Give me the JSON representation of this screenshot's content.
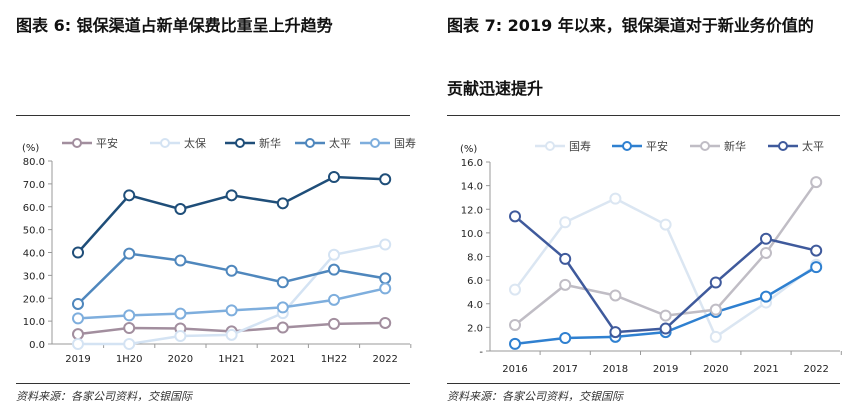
{
  "left": {
    "title": "图表 6:  银保渠道占新单保费比重呈上升趋势",
    "source": "资料来源：各家公司资料，交银国际"
  },
  "right": {
    "title_line1": "图表 7: 2019 年以来，银保渠道对于新业务价值的",
    "title_line2": "贡献迅速提升",
    "source": "资料来源：各家公司资料，交银国际"
  },
  "chart_data": [
    {
      "type": "line",
      "ylabel": "(%)",
      "ylim": [
        0,
        80
      ],
      "yticks": [
        "0.0",
        "10.0",
        "20.0",
        "30.0",
        "40.0",
        "50.0",
        "60.0",
        "70.0",
        "80.0"
      ],
      "legend_position": "top",
      "categories": [
        "2019",
        "1H20",
        "2020",
        "1H21",
        "2021",
        "1H22",
        "2022"
      ],
      "series": [
        {
          "name": "平安",
          "color": "#a28e9e",
          "values": [
            4.3,
            7.0,
            6.8,
            5.5,
            7.2,
            8.8,
            9.2
          ]
        },
        {
          "name": "太保",
          "color": "#d4e3f3",
          "values": [
            0,
            0,
            3.5,
            4.0,
            13.5,
            39.0,
            43.5
          ]
        },
        {
          "name": "新华",
          "color": "#1f4e79",
          "values": [
            40.0,
            65.0,
            59.0,
            65.0,
            61.5,
            73.0,
            72.0
          ]
        },
        {
          "name": "太平",
          "color": "#4f87bd",
          "values": [
            17.5,
            39.5,
            36.5,
            32.0,
            27.0,
            32.5,
            28.7
          ]
        },
        {
          "name": "国寿",
          "color": "#7eaedd",
          "values": [
            11.2,
            12.5,
            13.3,
            14.7,
            16.0,
            19.3,
            24.3
          ]
        }
      ]
    },
    {
      "type": "line",
      "ylabel": "(%)",
      "ylim": [
        0,
        16
      ],
      "yticks": [
        "-",
        "2.0",
        "4.0",
        "6.0",
        "8.0",
        "10.0",
        "12.0",
        "14.0",
        "16.0"
      ],
      "legend_position": "top",
      "categories": [
        "2016",
        "2017",
        "2018",
        "2019",
        "2020",
        "2021",
        "2022"
      ],
      "series": [
        {
          "name": "国寿",
          "color": "#dbe6f2",
          "values": [
            5.2,
            10.9,
            12.9,
            10.7,
            1.2,
            4.1,
            7.3
          ]
        },
        {
          "name": "平安",
          "color": "#2f80d0",
          "values": [
            0.6,
            1.1,
            1.2,
            1.6,
            3.3,
            4.6,
            7.1
          ]
        },
        {
          "name": "新华",
          "color": "#c0bdc5",
          "values": [
            2.2,
            5.6,
            4.7,
            3.0,
            3.5,
            8.3,
            14.3
          ]
        },
        {
          "name": "太平",
          "color": "#3f5a9c",
          "values": [
            11.4,
            7.8,
            1.6,
            1.9,
            5.8,
            9.5,
            8.5
          ]
        }
      ]
    }
  ]
}
